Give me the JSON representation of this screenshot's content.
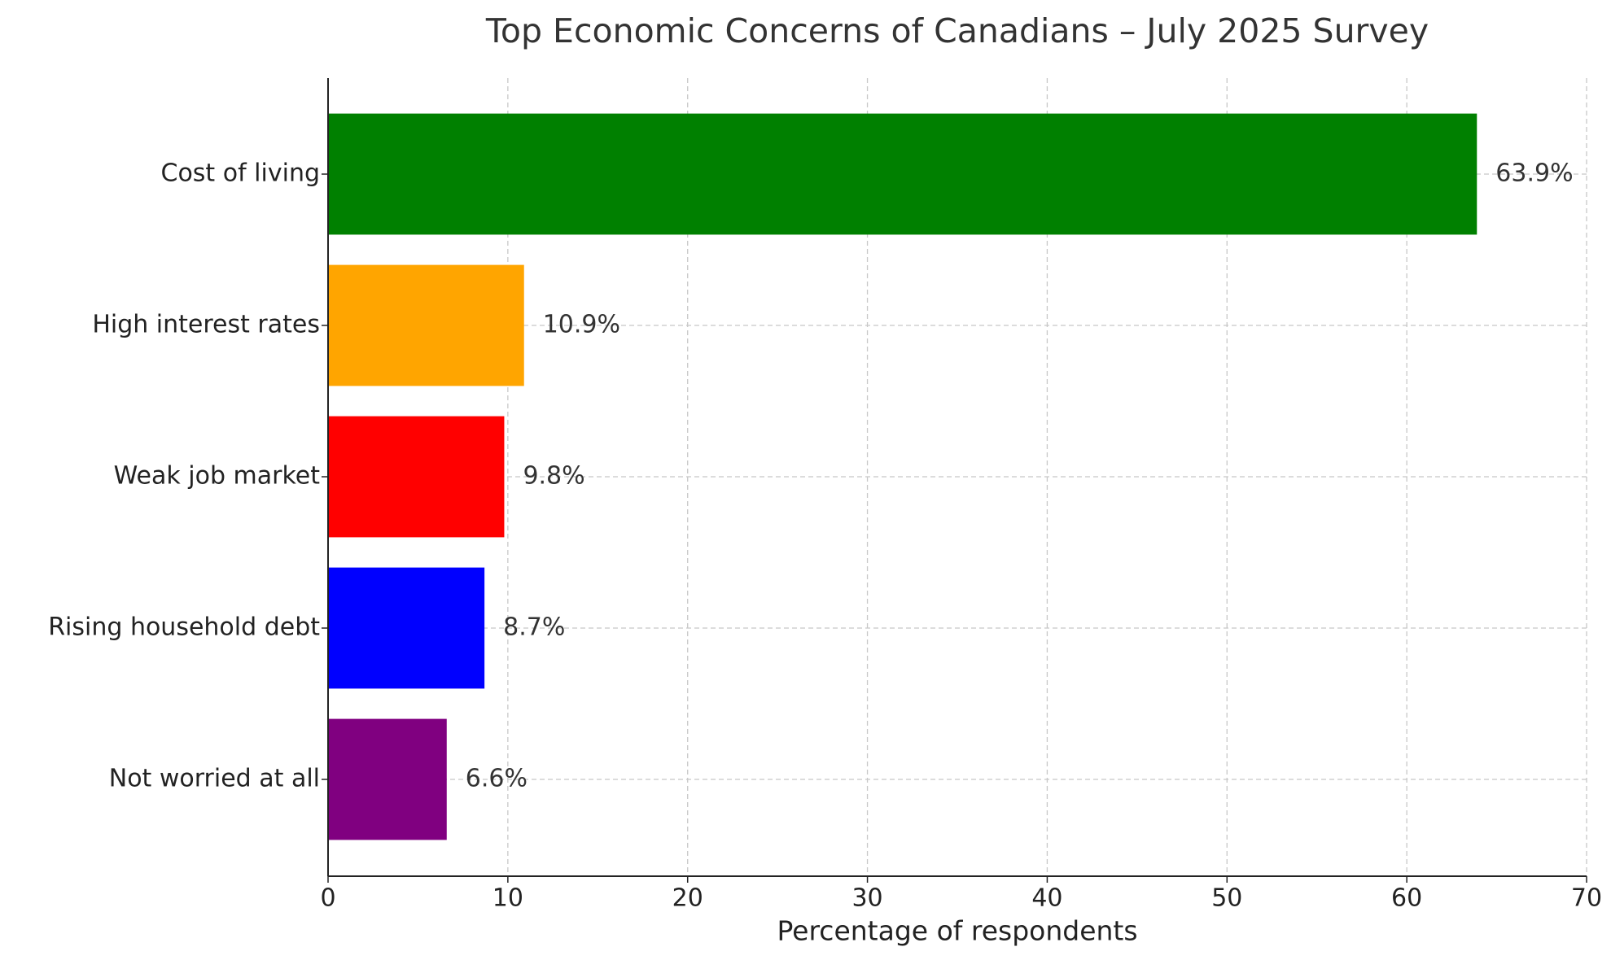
{
  "chart_data": {
    "type": "hbar",
    "title": "Top Economic Concerns of Canadians – July 2025 Survey",
    "x_label": "Percentage of respondents",
    "categories": [
      "Cost of living",
      "High interest rates",
      "Weak job market",
      "Rising household debt",
      "Not worried at all"
    ],
    "values": [
      63.9,
      10.9,
      9.8,
      8.7,
      6.6
    ],
    "value_labels": [
      "63.9%",
      "10.9%",
      "9.8%",
      "8.7%",
      "6.6%"
    ],
    "colors": [
      "#008000",
      "#ffa500",
      "#ff0000",
      "#0000ff",
      "#800080"
    ],
    "xlim": [
      0,
      70
    ],
    "xticks": [
      0,
      10,
      20,
      30,
      40,
      50,
      60,
      70
    ],
    "grid": true
  }
}
